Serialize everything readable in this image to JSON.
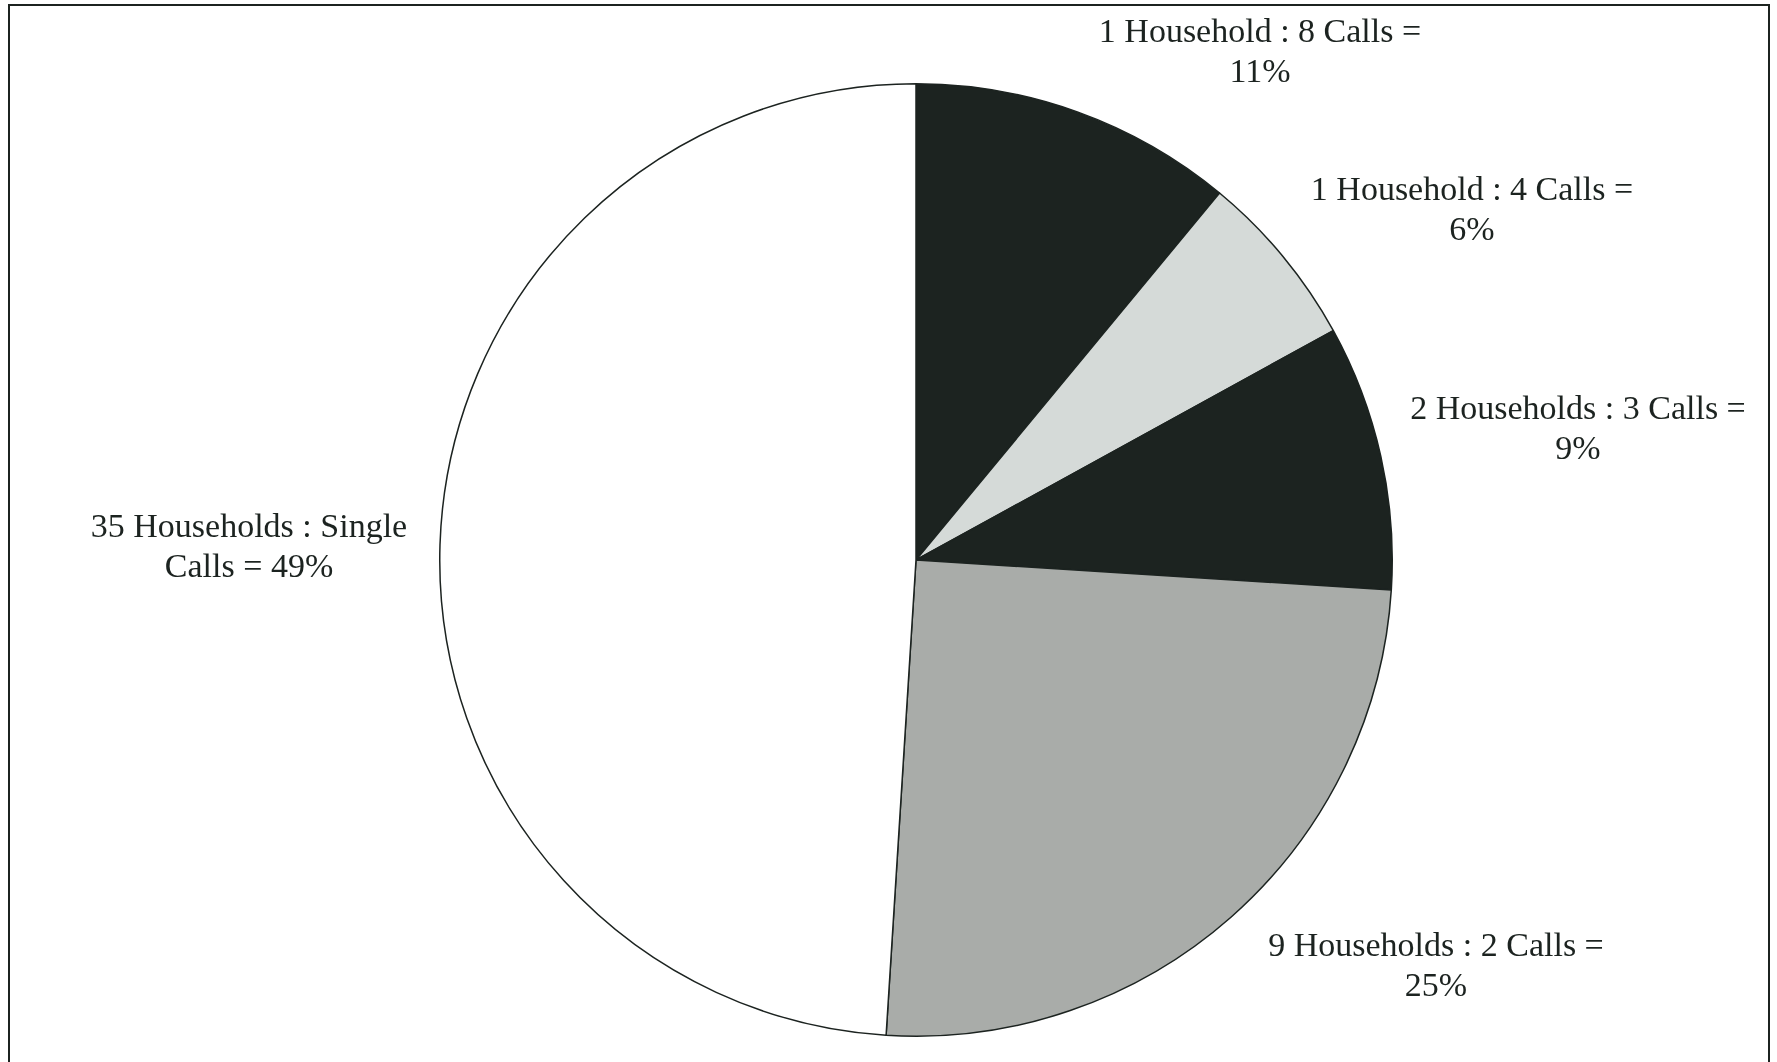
{
  "chart_data": {
    "type": "pie",
    "categories": [
      "1 Household : 8 Calls =",
      "1 Household : 4 Calls =",
      "2 Households : 3 Calls =",
      "9 Households : 2 Calls =",
      "35 Households : Single Calls ="
    ],
    "values": [
      11,
      6,
      9,
      25,
      49
    ],
    "value_labels": [
      "11%",
      "6%",
      "9%",
      "25%",
      "49%"
    ],
    "colors": [
      "#1c2320",
      "#d5dad8",
      "#1c2320",
      "#a9aca9",
      "#ffffff"
    ],
    "legend": false
  }
}
